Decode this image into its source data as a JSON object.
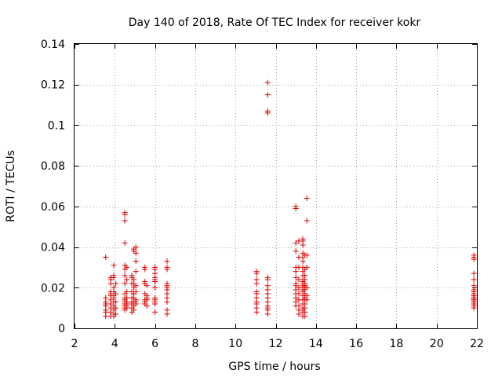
{
  "chart_data": {
    "type": "scatter",
    "title": "Day 140 of 2018, Rate Of TEC Index for receiver kokr",
    "xlabel": "GPS time / hours",
    "ylabel": "ROTI / TECUs",
    "xlim": [
      2,
      22
    ],
    "ylim": [
      0,
      0.14
    ],
    "xticks": [
      2,
      4,
      6,
      8,
      10,
      12,
      14,
      16,
      18,
      20,
      22
    ],
    "yticks": [
      0,
      0.02,
      0.04,
      0.06,
      0.08,
      0.1,
      0.12,
      0.14
    ],
    "grid": true,
    "marker": "+",
    "color": "#e00000",
    "series": [
      {
        "name": "ROTI",
        "x": [
          3.55,
          3.55,
          3.55,
          3.55,
          3.55,
          3.55,
          3.55,
          3.55,
          3.8,
          3.8,
          3.8,
          3.8,
          3.8,
          3.8,
          3.8,
          3.8,
          3.8,
          3.8,
          3.8,
          3.95,
          3.95,
          3.95,
          3.95,
          3.95,
          3.95,
          3.95,
          3.95,
          3.95,
          3.95,
          3.95,
          3.95,
          4.05,
          4.05,
          4.05,
          4.05,
          4.05,
          4.5,
          4.5,
          4.5,
          4.5,
          4.5,
          4.5,
          4.5,
          4.5,
          4.5,
          4.5,
          4.5,
          4.5,
          4.5,
          4.5,
          4.5,
          4.5,
          4.6,
          4.6,
          4.6,
          4.6,
          4.6,
          4.6,
          4.6,
          4.6,
          4.85,
          4.85,
          4.85,
          4.85,
          4.85,
          4.85,
          4.85,
          4.85,
          4.85,
          4.95,
          4.95,
          4.95,
          4.95,
          4.95,
          4.95,
          4.95,
          4.95,
          4.95,
          4.95,
          5.05,
          5.05,
          5.05,
          5.05,
          5.05,
          5.05,
          5.05,
          5.05,
          5.05,
          5.5,
          5.5,
          5.5,
          5.5,
          5.5,
          5.5,
          5.5,
          5.5,
          5.6,
          5.6,
          5.6,
          5.6,
          5.6,
          6.0,
          6.0,
          6.0,
          6.0,
          6.0,
          6.0,
          6.0,
          6.0,
          6.0,
          6.0,
          6.0,
          6.0,
          6.6,
          6.6,
          6.6,
          6.6,
          6.6,
          6.6,
          6.6,
          6.6,
          6.6,
          6.6,
          6.6,
          6.6,
          11.05,
          11.05,
          11.05,
          11.05,
          11.05,
          11.05,
          11.05,
          11.05,
          11.05,
          11.05,
          11.05,
          11.6,
          11.6,
          11.6,
          11.6,
          11.6,
          11.6,
          11.6,
          11.6,
          11.6,
          11.6,
          11.6,
          11.6,
          11.6,
          11.6,
          11.6,
          13.0,
          13.0,
          13.0,
          13.0,
          13.0,
          13.0,
          13.0,
          13.0,
          13.0,
          13.0,
          13.0,
          13.0,
          13.0,
          13.0,
          13.15,
          13.15,
          13.15,
          13.15,
          13.15,
          13.15,
          13.15,
          13.15,
          13.15,
          13.15,
          13.35,
          13.35,
          13.35,
          13.35,
          13.35,
          13.35,
          13.35,
          13.35,
          13.35,
          13.35,
          13.35,
          13.35,
          13.35,
          13.35,
          13.35,
          13.35,
          13.35,
          13.35,
          13.35,
          13.35,
          13.35,
          13.35,
          13.35,
          13.45,
          13.45,
          13.45,
          13.45,
          13.45,
          13.45,
          13.45,
          13.45,
          13.45,
          13.45,
          13.45,
          13.45,
          13.45,
          13.45,
          13.45,
          13.55,
          13.55,
          13.55,
          13.55,
          13.55,
          13.55,
          13.55,
          21.85,
          21.85,
          21.85,
          21.85,
          21.85,
          21.85,
          21.85,
          21.85,
          21.85,
          21.85,
          21.85,
          21.85,
          21.85,
          21.85,
          21.85,
          21.85,
          21.85,
          21.85,
          21.85,
          21.85,
          21.85,
          21.85
        ],
        "y": [
          0.035,
          0.015,
          0.013,
          0.012,
          0.011,
          0.009,
          0.008,
          0.006,
          0.025,
          0.024,
          0.022,
          0.018,
          0.017,
          0.016,
          0.014,
          0.012,
          0.01,
          0.008,
          0.006,
          0.031,
          0.026,
          0.025,
          0.02,
          0.018,
          0.016,
          0.015,
          0.013,
          0.011,
          0.009,
          0.007,
          0.006,
          0.022,
          0.017,
          0.013,
          0.01,
          0.007,
          0.057,
          0.056,
          0.053,
          0.042,
          0.031,
          0.029,
          0.026,
          0.022,
          0.017,
          0.015,
          0.014,
          0.013,
          0.012,
          0.011,
          0.01,
          0.009,
          0.03,
          0.024,
          0.018,
          0.015,
          0.013,
          0.012,
          0.011,
          0.01,
          0.026,
          0.025,
          0.022,
          0.018,
          0.015,
          0.013,
          0.012,
          0.01,
          0.008,
          0.039,
          0.038,
          0.024,
          0.022,
          0.02,
          0.017,
          0.015,
          0.013,
          0.011,
          0.009,
          0.04,
          0.037,
          0.033,
          0.028,
          0.021,
          0.018,
          0.014,
          0.013,
          0.012,
          0.03,
          0.029,
          0.023,
          0.022,
          0.017,
          0.014,
          0.013,
          0.012,
          0.021,
          0.016,
          0.015,
          0.014,
          0.011,
          0.03,
          0.029,
          0.027,
          0.025,
          0.024,
          0.023,
          0.02,
          0.015,
          0.014,
          0.013,
          0.012,
          0.008,
          0.033,
          0.03,
          0.029,
          0.022,
          0.021,
          0.02,
          0.019,
          0.017,
          0.015,
          0.013,
          0.009,
          0.007,
          0.028,
          0.027,
          0.024,
          0.022,
          0.018,
          0.017,
          0.015,
          0.013,
          0.012,
          0.01,
          0.008,
          0.121,
          0.115,
          0.107,
          0.106,
          0.025,
          0.024,
          0.021,
          0.019,
          0.017,
          0.015,
          0.013,
          0.011,
          0.01,
          0.009,
          0.007,
          0.06,
          0.059,
          0.042,
          0.038,
          0.03,
          0.028,
          0.025,
          0.022,
          0.021,
          0.019,
          0.017,
          0.015,
          0.013,
          0.011,
          0.043,
          0.035,
          0.03,
          0.024,
          0.02,
          0.017,
          0.014,
          0.011,
          0.009,
          0.007,
          0.044,
          0.043,
          0.041,
          0.037,
          0.035,
          0.033,
          0.03,
          0.028,
          0.026,
          0.024,
          0.023,
          0.022,
          0.021,
          0.02,
          0.019,
          0.018,
          0.016,
          0.014,
          0.012,
          0.01,
          0.009,
          0.008,
          0.006,
          0.036,
          0.029,
          0.026,
          0.024,
          0.022,
          0.021,
          0.02,
          0.019,
          0.017,
          0.015,
          0.014,
          0.012,
          0.01,
          0.008,
          0.006,
          0.064,
          0.053,
          0.036,
          0.03,
          0.02,
          0.016,
          0.014,
          0.036,
          0.035,
          0.034,
          0.027,
          0.024,
          0.021,
          0.019,
          0.018,
          0.017,
          0.016,
          0.016,
          0.015,
          0.015,
          0.014,
          0.014,
          0.013,
          0.013,
          0.012,
          0.012,
          0.011,
          0.011,
          0.01
        ]
      }
    ]
  }
}
